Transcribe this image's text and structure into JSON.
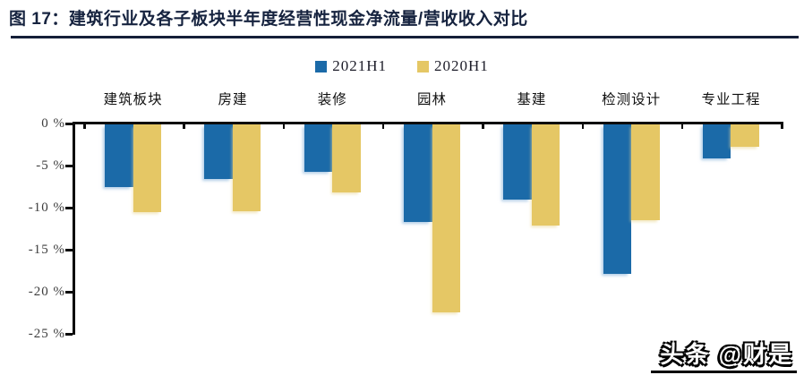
{
  "header": {
    "title": "图 17：建筑行业及各子板块半年度经营性现金净流量/营收收入对比"
  },
  "colors": {
    "series_2021": "#1B6AA8",
    "series_2020": "#E5C765",
    "title_navy": "#16233F",
    "axis_black": "#0B0B0B"
  },
  "watermark": "头条 @财是",
  "chart_data": {
    "type": "bar",
    "title": "建筑行业及各子板块半年度经营性现金净流量/营收收入对比",
    "categories": [
      "建筑板块",
      "房建",
      "装修",
      "园林",
      "基建",
      "检测设计",
      "专业工程"
    ],
    "series": [
      {
        "name": "2021H1",
        "color": "#1B6AA8",
        "values": [
          -7.5,
          -6.6,
          -5.7,
          -11.7,
          -9.0,
          -17.9,
          -4.1
        ]
      },
      {
        "name": "2020H1",
        "color": "#E5C765",
        "values": [
          -10.5,
          -10.4,
          -8.2,
          -22.4,
          -12.1,
          -11.5,
          -2.8
        ]
      }
    ],
    "ylabel_ticks": [
      "0 %",
      "-5 %",
      "-10 %",
      "-15 %",
      "-20 %",
      "-25 %"
    ],
    "ylim": [
      0,
      -25
    ],
    "xlabel": "",
    "ylabel": "",
    "grid": false,
    "legend_position": "top-center",
    "bar_direction": "down"
  }
}
